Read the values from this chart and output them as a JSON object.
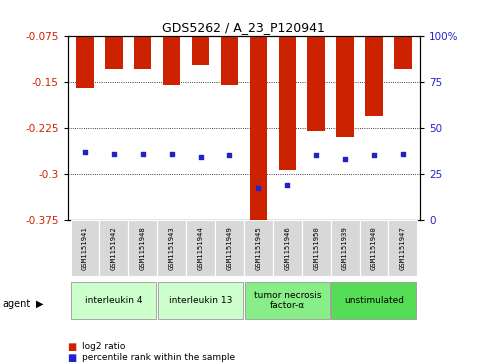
{
  "title": "GDS5262 / A_23_P120941",
  "samples": [
    "GSM1151941",
    "GSM1151942",
    "GSM1151948",
    "GSM1151943",
    "GSM1151944",
    "GSM1151949",
    "GSM1151945",
    "GSM1151946",
    "GSM1151950",
    "GSM1151939",
    "GSM1151940",
    "GSM1151947"
  ],
  "log2_ratios": [
    -0.16,
    -0.128,
    -0.128,
    -0.155,
    -0.122,
    -0.155,
    -0.378,
    -0.293,
    -0.23,
    -0.24,
    -0.205,
    -0.128
  ],
  "percentile_ranks": [
    37,
    36,
    36,
    36,
    34,
    35,
    17,
    19,
    35,
    33,
    35,
    36
  ],
  "ylim_left": [
    -0.375,
    -0.075
  ],
  "ylim_right": [
    0,
    100
  ],
  "yticks_left": [
    -0.375,
    -0.3,
    -0.225,
    -0.15,
    -0.075
  ],
  "yticks_right": [
    0,
    25,
    50,
    75,
    100
  ],
  "bar_color": "#cc2200",
  "dot_color": "#2222cc",
  "agents": [
    {
      "label": "interleukin 4",
      "start": 0,
      "end": 3,
      "color": "#ccffcc"
    },
    {
      "label": "interleukin 13",
      "start": 3,
      "end": 6,
      "color": "#ccffcc"
    },
    {
      "label": "tumor necrosis\nfactor-α",
      "start": 6,
      "end": 9,
      "color": "#88ee88"
    },
    {
      "label": "unstimulated",
      "start": 9,
      "end": 12,
      "color": "#55dd55"
    }
  ],
  "legend_items": [
    {
      "label": "log2 ratio",
      "color": "#cc2200"
    },
    {
      "label": "percentile rank within the sample",
      "color": "#2222cc"
    }
  ],
  "background_color": "#ffffff",
  "left_label_color": "#cc2200",
  "right_label_color": "#2222cc"
}
